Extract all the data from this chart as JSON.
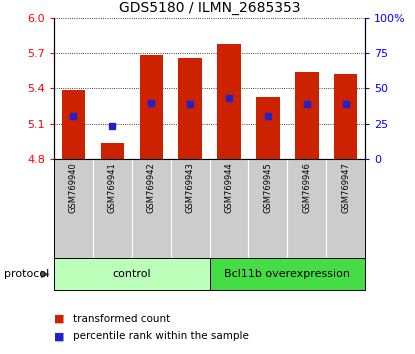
{
  "title": "GDS5180 / ILMN_2685353",
  "samples": [
    "GSM769940",
    "GSM769941",
    "GSM769942",
    "GSM769943",
    "GSM769944",
    "GSM769945",
    "GSM769946",
    "GSM769947"
  ],
  "transformed_count": [
    5.39,
    4.94,
    5.68,
    5.66,
    5.78,
    5.33,
    5.54,
    5.52
  ],
  "percentile_rank": [
    5.17,
    5.08,
    5.28,
    5.27,
    5.32,
    5.17,
    5.27,
    5.27
  ],
  "ylim": [
    4.8,
    6.0
  ],
  "yticks": [
    4.8,
    5.1,
    5.4,
    5.7,
    6.0
  ],
  "right_yticks": [
    0,
    25,
    50,
    75,
    100
  ],
  "bar_color": "#CC2200",
  "dot_color": "#2222CC",
  "bar_width": 0.6,
  "groups": [
    {
      "label": "control",
      "indices": [
        0,
        1,
        2,
        3
      ],
      "color": "#BBFFBB"
    },
    {
      "label": "Bcl11b overexpression",
      "indices": [
        4,
        5,
        6,
        7
      ],
      "color": "#44DD44"
    }
  ],
  "protocol_label": "protocol",
  "bar_bg": "#CCCCCC",
  "title_fontsize": 10,
  "tick_fontsize": 8,
  "sample_fontsize": 6,
  "group_fontsize": 8
}
